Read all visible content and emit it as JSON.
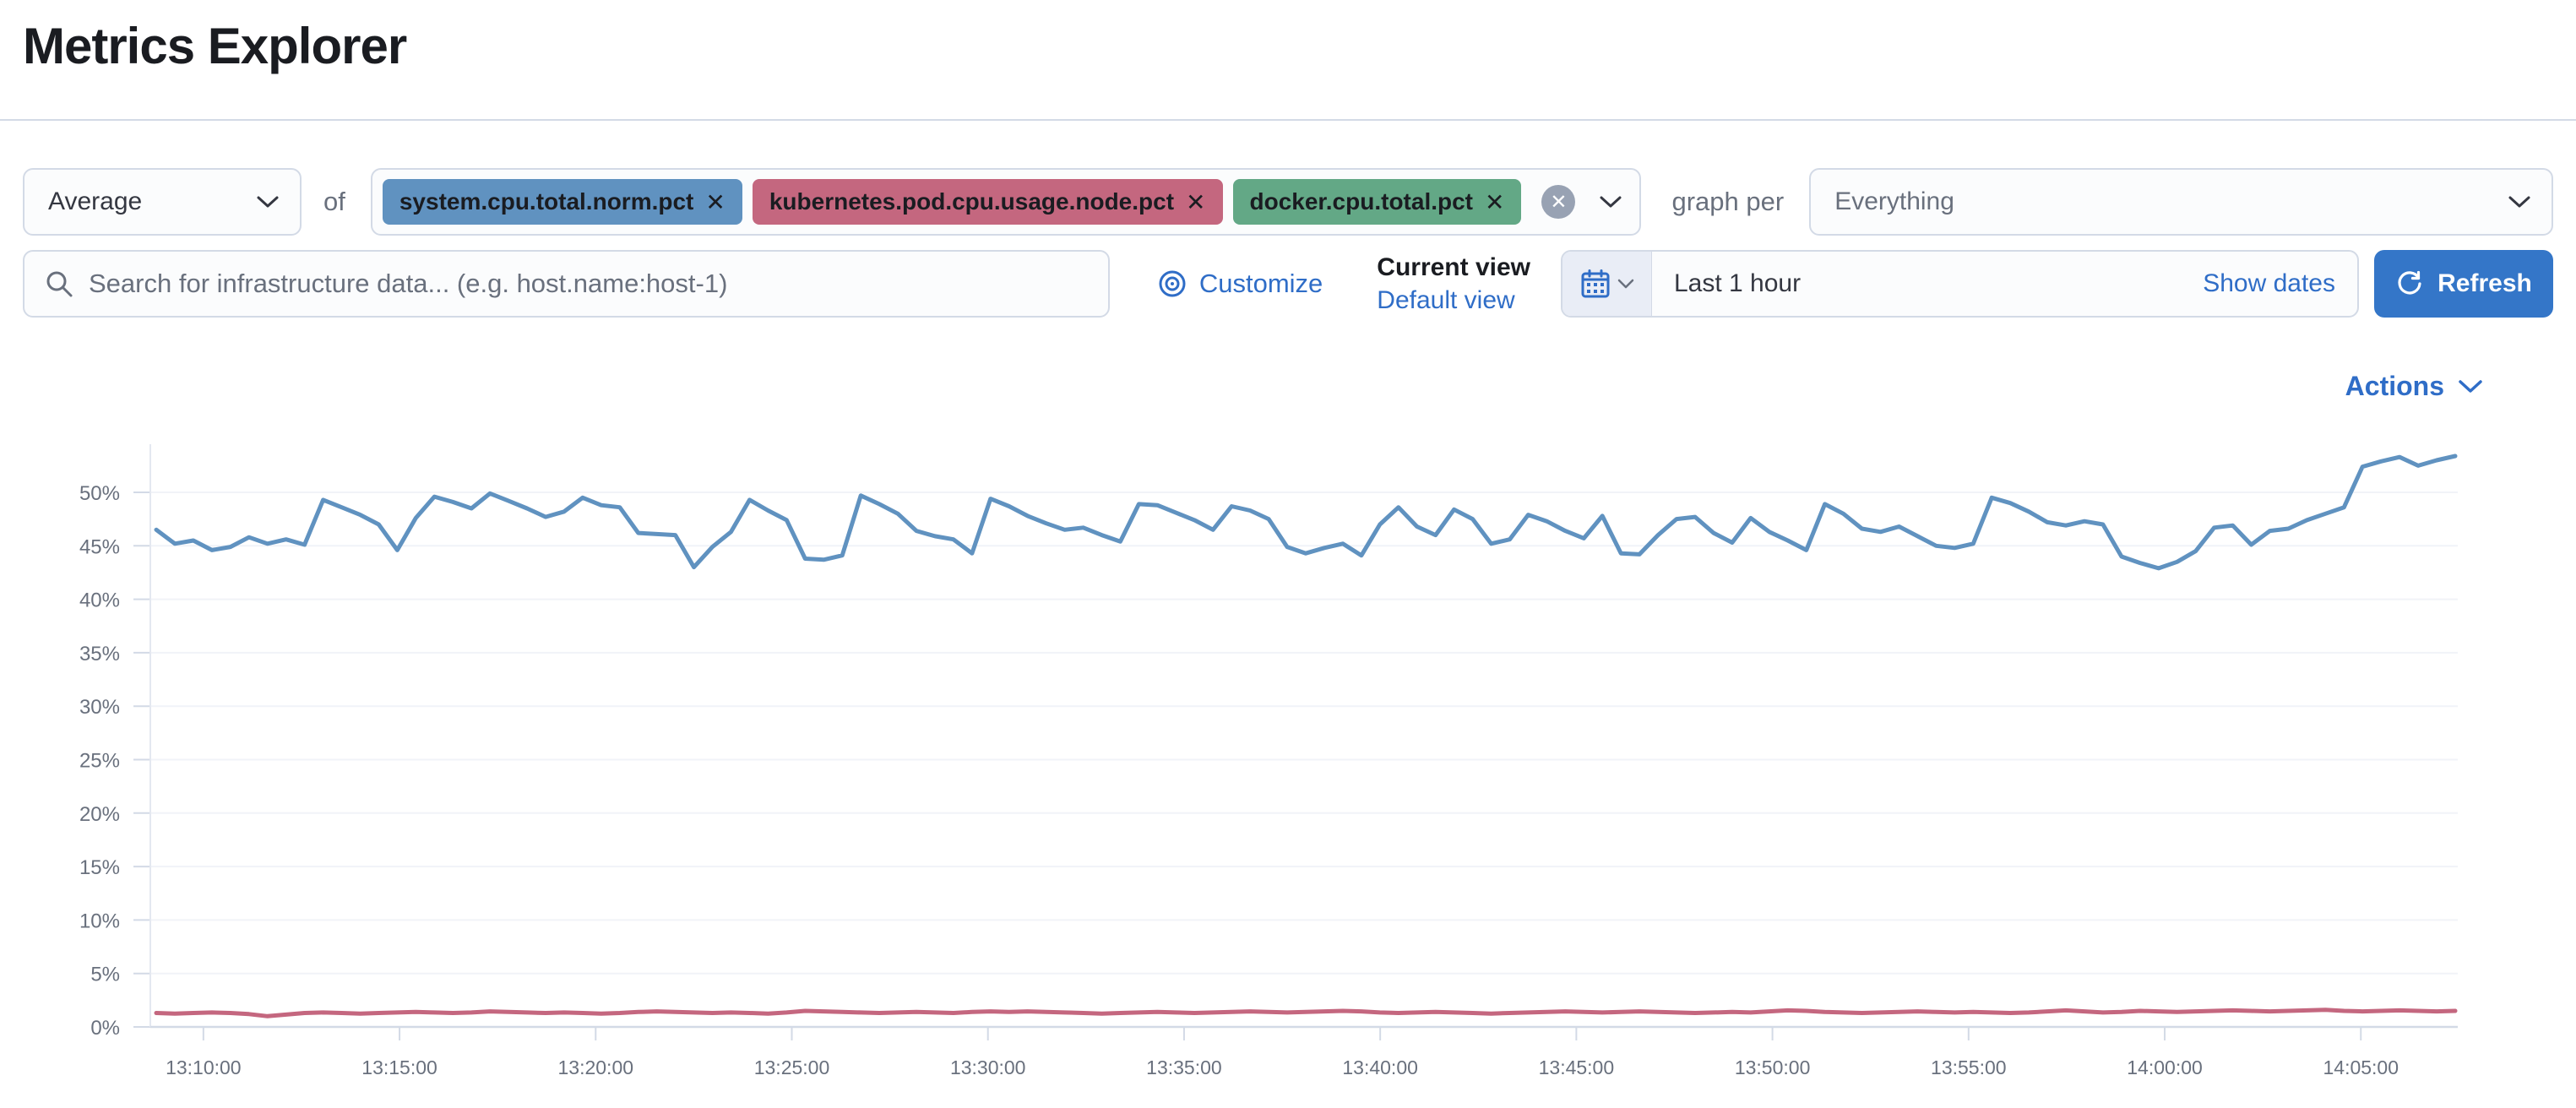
{
  "page": {
    "title": "Metrics Explorer"
  },
  "toolbar": {
    "aggregation": {
      "value": "Average"
    },
    "of_label": "of",
    "metrics": [
      {
        "label": "system.cpu.total.norm.pct",
        "remove_glyph": "✕",
        "color": "#6092C0"
      },
      {
        "label": "kubernetes.pod.cpu.usage.node.pct",
        "remove_glyph": "✕",
        "color": "#C4677F"
      },
      {
        "label": "docker.cpu.total.pct",
        "remove_glyph": "✕",
        "color": "#63A886"
      }
    ],
    "clear_glyph": "✕",
    "graph_per_label": "graph per",
    "group_by": {
      "value": "Everything"
    }
  },
  "searchbar": {
    "placeholder": "Search for infrastructure data... (e.g. host.name:host-1)",
    "customize_label": "Customize",
    "current_view_label": "Current view",
    "view_name": "Default view",
    "time_range": "Last 1 hour",
    "show_dates_label": "Show dates",
    "refresh_label": "Refresh"
  },
  "actions": {
    "label": "Actions"
  },
  "chart_data": {
    "type": "line",
    "title": "",
    "xlabel": "",
    "ylabel": "",
    "unit": "%",
    "ylim": [
      0,
      54.6
    ],
    "y_tick_step": 5,
    "y_tick_max": 50,
    "grid": true,
    "legend": "none",
    "x_tick_labels": [
      "13:10:00",
      "13:15:00",
      "13:20:00",
      "13:25:00",
      "13:30:00",
      "13:35:00",
      "13:40:00",
      "13:45:00",
      "13:50:00",
      "13:55:00",
      "14:00:00",
      "14:05:00"
    ],
    "x_tick_first_frac": 0.023,
    "x_tick_step_frac": 0.085,
    "series": [
      {
        "name": "system.cpu.total.norm.pct",
        "color": "#6092C0",
        "values": [
          46.5,
          45.2,
          45.5,
          44.6,
          44.9,
          45.8,
          45.2,
          45.6,
          45.1,
          49.3,
          48.6,
          47.9,
          47.0,
          44.6,
          47.6,
          49.6,
          49.1,
          48.5,
          49.9,
          49.2,
          48.5,
          47.7,
          48.2,
          49.5,
          48.8,
          48.6,
          46.2,
          46.1,
          46.0,
          43.0,
          44.9,
          46.3,
          49.3,
          48.3,
          47.4,
          43.8,
          43.7,
          44.1,
          49.7,
          48.9,
          48.0,
          46.4,
          45.9,
          45.6,
          44.3,
          49.4,
          48.7,
          47.8,
          47.1,
          46.5,
          46.7,
          46.0,
          45.4,
          48.9,
          48.8,
          48.1,
          47.4,
          46.5,
          48.7,
          48.3,
          47.5,
          44.9,
          44.3,
          44.8,
          45.2,
          44.1,
          47.0,
          48.6,
          46.8,
          46.0,
          48.4,
          47.5,
          45.2,
          45.6,
          47.9,
          47.3,
          46.4,
          45.7,
          47.8,
          44.3,
          44.2,
          46.0,
          47.5,
          47.7,
          46.2,
          45.3,
          47.6,
          46.3,
          45.5,
          44.6,
          48.9,
          48.0,
          46.6,
          46.3,
          46.8,
          45.9,
          45.0,
          44.8,
          45.2,
          49.5,
          49.0,
          48.2,
          47.2,
          46.9,
          47.3,
          47.0,
          44.0,
          43.4,
          42.9,
          43.5,
          44.5,
          46.7,
          46.9,
          45.1,
          46.4,
          46.6,
          47.4,
          48.0,
          48.6,
          52.4,
          52.9,
          53.3,
          52.5,
          53.0,
          53.4
        ]
      },
      {
        "name": "kubernetes.pod.cpu.usage.node.pct",
        "color": "#C4677F",
        "values": [
          1.3,
          1.25,
          1.3,
          1.35,
          1.3,
          1.2,
          1.0,
          1.15,
          1.3,
          1.35,
          1.3,
          1.25,
          1.3,
          1.35,
          1.4,
          1.35,
          1.3,
          1.35,
          1.45,
          1.4,
          1.35,
          1.3,
          1.35,
          1.3,
          1.25,
          1.3,
          1.4,
          1.45,
          1.4,
          1.35,
          1.3,
          1.35,
          1.3,
          1.25,
          1.35,
          1.5,
          1.45,
          1.4,
          1.35,
          1.3,
          1.35,
          1.4,
          1.35,
          1.3,
          1.4,
          1.45,
          1.4,
          1.45,
          1.4,
          1.35,
          1.3,
          1.25,
          1.3,
          1.35,
          1.4,
          1.35,
          1.3,
          1.35,
          1.4,
          1.45,
          1.4,
          1.35,
          1.4,
          1.45,
          1.5,
          1.45,
          1.35,
          1.3,
          1.35,
          1.4,
          1.35,
          1.3,
          1.25,
          1.3,
          1.35,
          1.4,
          1.45,
          1.4,
          1.35,
          1.4,
          1.45,
          1.4,
          1.35,
          1.3,
          1.35,
          1.4,
          1.35,
          1.45,
          1.55,
          1.5,
          1.4,
          1.35,
          1.3,
          1.35,
          1.4,
          1.45,
          1.4,
          1.35,
          1.4,
          1.35,
          1.3,
          1.35,
          1.45,
          1.55,
          1.45,
          1.35,
          1.4,
          1.5,
          1.45,
          1.4,
          1.45,
          1.5,
          1.55,
          1.5,
          1.45,
          1.5,
          1.55,
          1.6,
          1.5,
          1.45,
          1.5,
          1.55,
          1.5,
          1.45,
          1.5
        ]
      }
    ]
  }
}
